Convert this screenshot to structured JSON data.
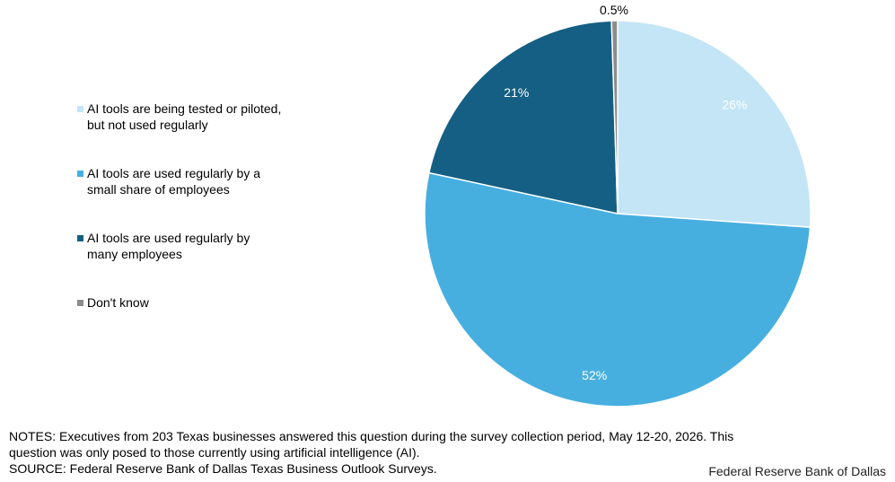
{
  "chart_data": {
    "type": "pie",
    "categories": [
      "AI tools are being tested or piloted, but not used regularly",
      "AI tools are used regularly by a small share of employees",
      "AI tools are used regularly by many employees",
      "Don't know"
    ],
    "legend_lines": [
      [
        "AI tools are being tested or piloted,",
        "but not used regularly"
      ],
      [
        "AI tools are used regularly by a",
        "small share of employees"
      ],
      [
        "AI tools are used regularly by",
        "many employees"
      ],
      [
        "Don't know"
      ]
    ],
    "values": [
      26,
      52,
      21,
      0.5
    ],
    "data_labels": [
      "26%",
      "52%",
      "21%",
      "0.5%"
    ],
    "colors": [
      "#c3e5f6",
      "#47afe0",
      "#155f84",
      "#8c8c8c"
    ],
    "label_colors": [
      "#ffffff",
      "#ffffff",
      "#ffffff",
      "#000000"
    ],
    "legend_position": "left",
    "start": "12 o'clock, clockwise"
  },
  "notes": {
    "line1": "NOTES: Executives from 203 Texas businesses answered this question during the survey collection period, May 12-20, 2026. This",
    "line2": "question was only posed to those currently  using artificial intelligence (AI).",
    "line3": "SOURCE: Federal Reserve Bank of Dallas Texas Business Outlook Surveys."
  },
  "branding": "Federal Reserve Bank of Dallas"
}
